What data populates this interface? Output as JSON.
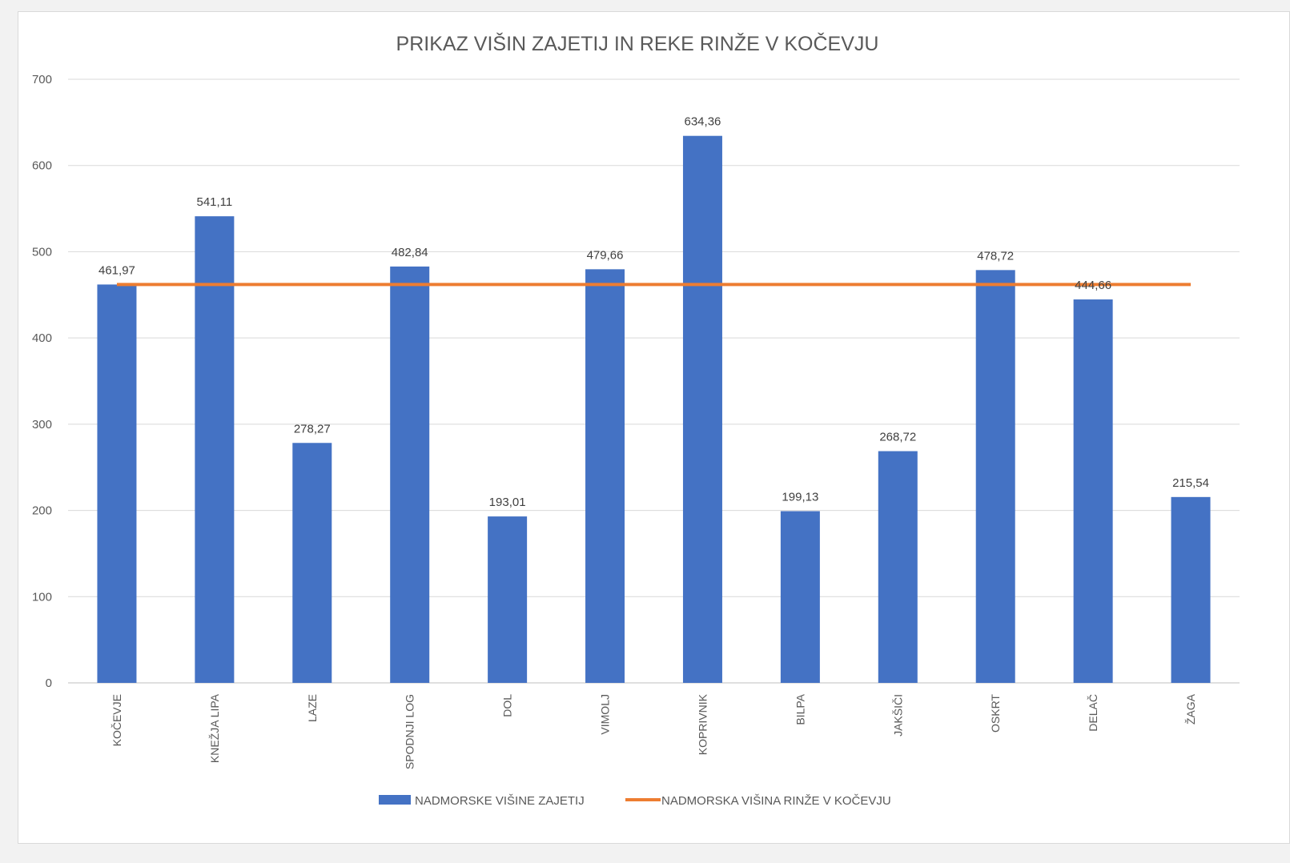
{
  "chart_data": {
    "type": "bar",
    "title": "PRIKAZ VIŠIN ZAJETIJ IN REKE RINŽE V KOČEVJU",
    "categories": [
      "KOČEVJE",
      "KNEŽJA LIPA",
      "LAZE",
      "SPODNJI LOG",
      "DOL",
      "VIMOLJ",
      "KOPRIVNIK",
      "BILPA",
      "JAKŠIČI",
      "OSKRT",
      "DELAČ",
      "ŽAGA"
    ],
    "series": [
      {
        "name": "NADMORSKE VIŠINE ZAJETIJ",
        "type": "bar",
        "color": "#4472c4",
        "values": [
          461.97,
          541.11,
          278.27,
          482.84,
          193.01,
          479.66,
          634.36,
          199.13,
          268.72,
          478.72,
          444.66,
          215.54
        ],
        "labels": [
          "461,97",
          "541,11",
          "278,27",
          "482,84",
          "193,01",
          "479,66",
          "634,36",
          "199,13",
          "268,72",
          "478,72",
          "444,66",
          "215,54"
        ]
      },
      {
        "name": "NADMORSKA VIŠINA RINŽE V KOČEVJU",
        "type": "line",
        "color": "#ed7d31",
        "values": [
          461.97,
          461.97,
          461.97,
          461.97,
          461.97,
          461.97,
          461.97,
          461.97,
          461.97,
          461.97,
          461.97,
          461.97
        ]
      }
    ],
    "ylim": [
      0,
      700
    ],
    "yticks": [
      "0",
      "100",
      "200",
      "300",
      "400",
      "500",
      "600",
      "700"
    ],
    "xlabel": "",
    "ylabel": "",
    "grid": true,
    "legend": "bottom"
  }
}
